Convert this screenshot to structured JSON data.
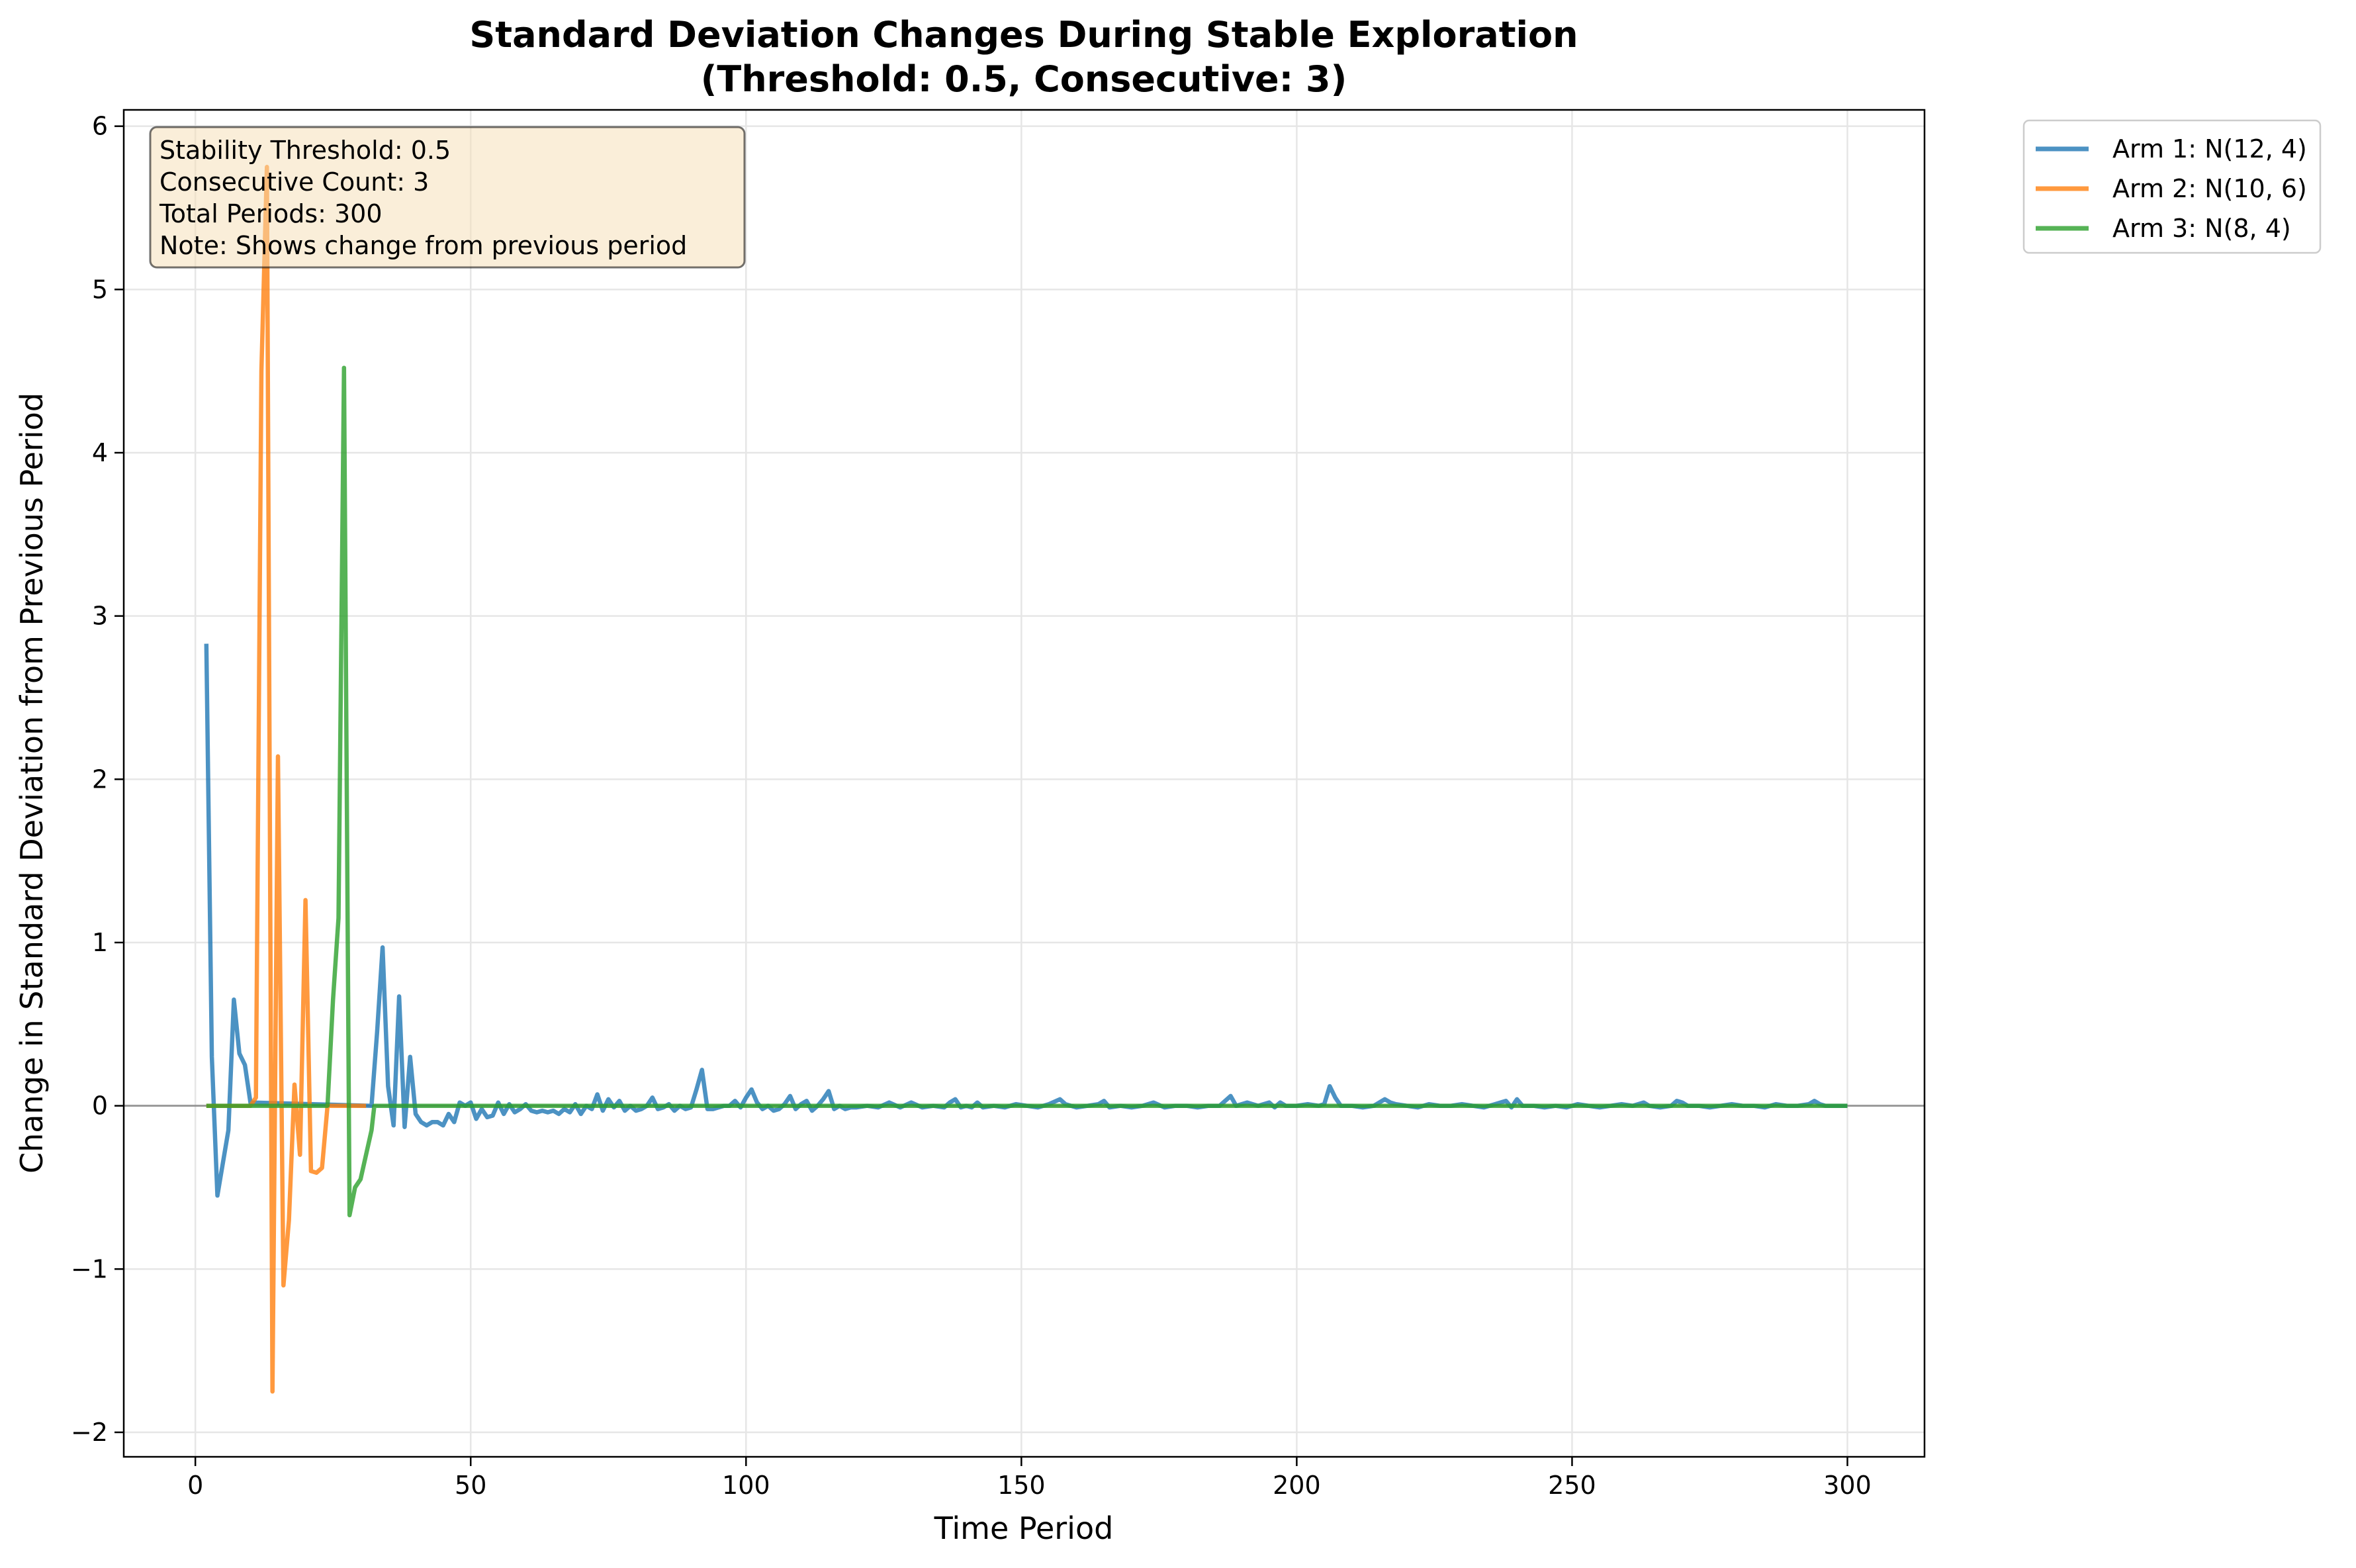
{
  "chart_data": {
    "type": "line",
    "title": "Standard Deviation Changes During Stable Exploration",
    "subtitle": "(Threshold: 0.5, Consecutive: 3)",
    "xlabel": "Time Period",
    "ylabel": "Change in Standard Deviation from Previous Period",
    "xlim": [
      -13,
      314
    ],
    "ylim": [
      -2.15,
      6.1
    ],
    "xticks": [
      0,
      50,
      100,
      150,
      200,
      250,
      300
    ],
    "xtick_labels": [
      "0",
      "50",
      "100",
      "150",
      "200",
      "250",
      "300"
    ],
    "yticks": [
      -2,
      -1,
      0,
      1,
      2,
      3,
      4,
      5,
      6
    ],
    "ytick_labels": [
      "−2",
      "−1",
      "0",
      "1",
      "2",
      "3",
      "4",
      "5",
      "6"
    ],
    "grid": true,
    "reference_line_y": 0,
    "legend_position": "outside-top-right",
    "info_box": {
      "lines": [
        "Stability Threshold: 0.5",
        "Consecutive Count: 3",
        "Total Periods: 300",
        "Note: Shows change from previous period"
      ]
    },
    "series": [
      {
        "name": "Arm 1: N(12, 4)",
        "color": "#1f77b4",
        "points": [
          [
            2,
            2.83
          ],
          [
            3,
            0.3
          ],
          [
            4,
            -0.55
          ],
          [
            5,
            -0.35
          ],
          [
            6,
            -0.15
          ],
          [
            7,
            0.65
          ],
          [
            8,
            0.32
          ],
          [
            9,
            0.25
          ],
          [
            10,
            0.02
          ],
          [
            32,
            0.0
          ],
          [
            33,
            0.45
          ],
          [
            34,
            0.97
          ],
          [
            35,
            0.12
          ],
          [
            36,
            -0.12
          ],
          [
            37,
            0.67
          ],
          [
            38,
            -0.13
          ],
          [
            39,
            0.3
          ],
          [
            40,
            -0.05
          ],
          [
            41,
            -0.1
          ],
          [
            42,
            -0.12
          ],
          [
            43,
            -0.1
          ],
          [
            44,
            -0.1
          ],
          [
            45,
            -0.12
          ],
          [
            46,
            -0.05
          ],
          [
            47,
            -0.1
          ],
          [
            48,
            0.02
          ],
          [
            49,
            0.0
          ],
          [
            50,
            0.02
          ],
          [
            51,
            -0.08
          ],
          [
            52,
            -0.02
          ],
          [
            53,
            -0.07
          ],
          [
            54,
            -0.06
          ],
          [
            55,
            0.02
          ],
          [
            56,
            -0.05
          ],
          [
            57,
            0.01
          ],
          [
            58,
            -0.04
          ],
          [
            59,
            -0.02
          ],
          [
            60,
            0.01
          ],
          [
            61,
            -0.03
          ],
          [
            62,
            -0.04
          ],
          [
            63,
            -0.03
          ],
          [
            64,
            -0.04
          ],
          [
            65,
            -0.03
          ],
          [
            66,
            -0.05
          ],
          [
            67,
            -0.02
          ],
          [
            68,
            -0.04
          ],
          [
            69,
            0.01
          ],
          [
            70,
            -0.05
          ],
          [
            71,
            0.0
          ],
          [
            72,
            -0.02
          ],
          [
            73,
            0.07
          ],
          [
            74,
            -0.03
          ],
          [
            75,
            0.04
          ],
          [
            76,
            -0.01
          ],
          [
            77,
            0.03
          ],
          [
            78,
            -0.03
          ],
          [
            79,
            0.0
          ],
          [
            80,
            -0.03
          ],
          [
            81,
            -0.02
          ],
          [
            82,
            0.0
          ],
          [
            83,
            0.05
          ],
          [
            84,
            -0.02
          ],
          [
            85,
            -0.01
          ],
          [
            86,
            0.01
          ],
          [
            87,
            -0.03
          ],
          [
            88,
            0.0
          ],
          [
            89,
            -0.02
          ],
          [
            90,
            -0.01
          ],
          [
            91,
            0.1
          ],
          [
            92,
            0.22
          ],
          [
            93,
            -0.02
          ],
          [
            94,
            -0.02
          ],
          [
            95,
            -0.01
          ],
          [
            96,
            0.0
          ],
          [
            97,
            0.0
          ],
          [
            98,
            0.03
          ],
          [
            99,
            -0.01
          ],
          [
            100,
            0.05
          ],
          [
            101,
            0.1
          ],
          [
            102,
            0.02
          ],
          [
            103,
            -0.02
          ],
          [
            104,
            0.0
          ],
          [
            105,
            -0.03
          ],
          [
            106,
            -0.02
          ],
          [
            107,
            0.01
          ],
          [
            108,
            0.06
          ],
          [
            109,
            -0.02
          ],
          [
            110,
            0.01
          ],
          [
            111,
            0.03
          ],
          [
            112,
            -0.03
          ],
          [
            113,
            0.0
          ],
          [
            114,
            0.04
          ],
          [
            115,
            0.09
          ],
          [
            116,
            -0.02
          ],
          [
            117,
            0.0
          ],
          [
            118,
            -0.02
          ],
          [
            119,
            -0.01
          ],
          [
            120,
            -0.01
          ],
          [
            122,
            0.0
          ],
          [
            124,
            -0.01
          ],
          [
            126,
            0.02
          ],
          [
            128,
            -0.01
          ],
          [
            130,
            0.02
          ],
          [
            132,
            -0.01
          ],
          [
            134,
            0.0
          ],
          [
            136,
            -0.01
          ],
          [
            137,
            0.02
          ],
          [
            138,
            0.04
          ],
          [
            139,
            -0.01
          ],
          [
            140,
            0.0
          ],
          [
            141,
            -0.01
          ],
          [
            142,
            0.02
          ],
          [
            143,
            -0.01
          ],
          [
            145,
            0.0
          ],
          [
            147,
            -0.01
          ],
          [
            149,
            0.01
          ],
          [
            151,
            0.0
          ],
          [
            153,
            -0.01
          ],
          [
            155,
            0.01
          ],
          [
            157,
            0.04
          ],
          [
            158,
            0.01
          ],
          [
            160,
            -0.01
          ],
          [
            162,
            0.0
          ],
          [
            164,
            0.01
          ],
          [
            165,
            0.03
          ],
          [
            166,
            -0.01
          ],
          [
            168,
            0.0
          ],
          [
            170,
            -0.01
          ],
          [
            172,
            0.0
          ],
          [
            174,
            0.02
          ],
          [
            176,
            -0.01
          ],
          [
            178,
            0.0
          ],
          [
            180,
            0.0
          ],
          [
            182,
            -0.01
          ],
          [
            184,
            0.0
          ],
          [
            186,
            0.0
          ],
          [
            188,
            0.06
          ],
          [
            189,
            0.0
          ],
          [
            191,
            0.02
          ],
          [
            193,
            0.0
          ],
          [
            195,
            0.02
          ],
          [
            196,
            -0.01
          ],
          [
            197,
            0.02
          ],
          [
            198,
            0.0
          ],
          [
            200,
            0.0
          ],
          [
            202,
            0.01
          ],
          [
            204,
            0.0
          ],
          [
            205,
            0.01
          ],
          [
            206,
            0.12
          ],
          [
            207,
            0.05
          ],
          [
            208,
            0.0
          ],
          [
            210,
            0.0
          ],
          [
            212,
            -0.01
          ],
          [
            214,
            0.0
          ],
          [
            216,
            0.04
          ],
          [
            217,
            0.02
          ],
          [
            218,
            0.01
          ],
          [
            220,
            0.0
          ],
          [
            222,
            -0.01
          ],
          [
            224,
            0.01
          ],
          [
            226,
            0.0
          ],
          [
            228,
            0.0
          ],
          [
            230,
            0.01
          ],
          [
            232,
            0.0
          ],
          [
            234,
            -0.01
          ],
          [
            236,
            0.01
          ],
          [
            238,
            0.03
          ],
          [
            239,
            -0.01
          ],
          [
            240,
            0.04
          ],
          [
            241,
            0.0
          ],
          [
            243,
            0.0
          ],
          [
            245,
            -0.01
          ],
          [
            247,
            0.0
          ],
          [
            249,
            -0.01
          ],
          [
            251,
            0.01
          ],
          [
            253,
            0.0
          ],
          [
            255,
            -0.01
          ],
          [
            257,
            0.0
          ],
          [
            259,
            0.01
          ],
          [
            261,
            0.0
          ],
          [
            263,
            0.02
          ],
          [
            264,
            0.0
          ],
          [
            266,
            -0.01
          ],
          [
            268,
            0.0
          ],
          [
            269,
            0.03
          ],
          [
            270,
            0.02
          ],
          [
            271,
            0.0
          ],
          [
            273,
            0.0
          ],
          [
            275,
            -0.01
          ],
          [
            277,
            0.0
          ],
          [
            279,
            0.01
          ],
          [
            281,
            0.0
          ],
          [
            283,
            0.0
          ],
          [
            285,
            -0.01
          ],
          [
            287,
            0.01
          ],
          [
            289,
            0.0
          ],
          [
            291,
            0.0
          ],
          [
            293,
            0.01
          ],
          [
            294,
            0.03
          ],
          [
            295,
            0.01
          ],
          [
            296,
            0.0
          ],
          [
            298,
            0.0
          ],
          [
            300,
            0.0
          ]
        ]
      },
      {
        "name": "Arm 2: N(10, 6)",
        "color": "#ff7f0e",
        "points": [
          [
            2,
            0.0
          ],
          [
            10,
            0.0
          ],
          [
            11,
            0.05
          ],
          [
            12,
            4.5
          ],
          [
            13,
            5.75
          ],
          [
            14,
            -1.75
          ],
          [
            15,
            2.14
          ],
          [
            16,
            -1.1
          ],
          [
            17,
            -0.7
          ],
          [
            18,
            0.13
          ],
          [
            19,
            -0.3
          ],
          [
            20,
            1.26
          ],
          [
            21,
            -0.4
          ],
          [
            22,
            -0.41
          ],
          [
            23,
            -0.38
          ],
          [
            24,
            0.0
          ],
          [
            25,
            0.0
          ],
          [
            28,
            0.0
          ],
          [
            31,
            0.0
          ]
        ]
      },
      {
        "name": "Arm 3: N(8, 4)",
        "color": "#2ca02c",
        "points": [
          [
            2,
            0.0
          ],
          [
            10,
            0.0
          ],
          [
            20,
            0.0
          ],
          [
            24,
            0.0
          ],
          [
            25,
            0.65
          ],
          [
            26,
            1.15
          ],
          [
            27,
            4.52
          ],
          [
            28,
            -0.67
          ],
          [
            29,
            -0.5
          ],
          [
            30,
            -0.45
          ],
          [
            31,
            -0.3
          ],
          [
            32,
            -0.15
          ],
          [
            32.5,
            0.0
          ],
          [
            50,
            0.0
          ],
          [
            100,
            0.0
          ],
          [
            150,
            0.0
          ],
          [
            200,
            0.0
          ],
          [
            250,
            0.0
          ],
          [
            300,
            0.0
          ]
        ]
      }
    ]
  }
}
